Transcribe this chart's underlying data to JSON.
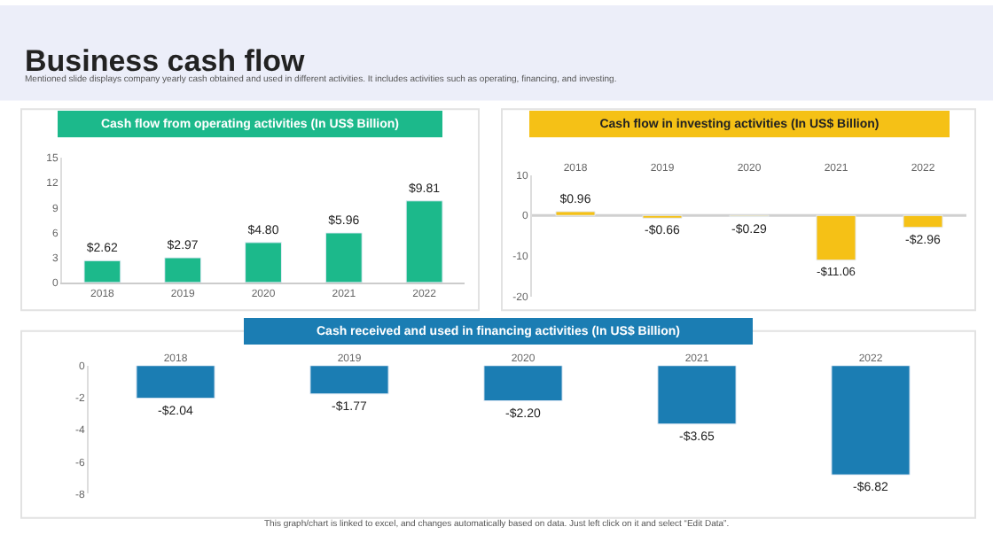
{
  "chart_data": [
    {
      "type": "bar",
      "title": "Cash flow from operating activities (In US$ Billion)",
      "annotations": [
        "Business cash flow",
        "Mentioned slide displays company yearly cash obtained and used in different activities. It includes activities such as operating, financing, and investing."
      ],
      "categories": [
        "2018",
        "2019",
        "2020",
        "2021",
        "2022"
      ],
      "values": [
        2.62,
        2.97,
        4.8,
        5.96,
        9.81
      ],
      "value_labels": [
        "$2.62",
        "$2.97",
        "$4.80",
        "$5.96",
        "$9.81"
      ],
      "color": "#1cb98b",
      "ylim": [
        0,
        15
      ],
      "yticks": [
        0,
        3,
        6,
        9,
        12,
        15
      ],
      "grid": false
    },
    {
      "type": "bar",
      "title": "Cash flow in investing activities (In US$ Billion)",
      "categories": [
        "2018",
        "2019",
        "2020",
        "2021",
        "2022"
      ],
      "values": [
        0.96,
        -0.66,
        -0.29,
        -11.06,
        -2.96
      ],
      "value_labels": [
        "$0.96",
        "-$0.66",
        "-$0.29",
        "-$11.06",
        "-$2.96"
      ],
      "color": "#f5c116",
      "ylim": [
        -20,
        10
      ],
      "yticks": [
        -20,
        -10,
        0,
        10
      ],
      "ref_lines": [
        {
          "axis": "y",
          "value": 0,
          "color": "#d0d0d0"
        }
      ],
      "grid": false
    },
    {
      "type": "bar",
      "title": "Cash received and used in financing activities (In US$ Billion)",
      "annotations": [
        "This graph/chart is linked to excel, and changes automatically based on data. Just left click on it and select “Edit Data”."
      ],
      "categories": [
        "2018",
        "2019",
        "2020",
        "2021",
        "2022"
      ],
      "values": [
        -2.04,
        -1.77,
        -2.2,
        -3.65,
        -6.82
      ],
      "value_labels": [
        "-$2.04",
        "-$1.77",
        "-$2.20",
        "-$3.65",
        "-$6.82"
      ],
      "color": "#1b7db3",
      "ylim": [
        -8,
        0
      ],
      "yticks": [
        0,
        -2,
        -4,
        -6,
        -8
      ],
      "grid": false
    }
  ]
}
